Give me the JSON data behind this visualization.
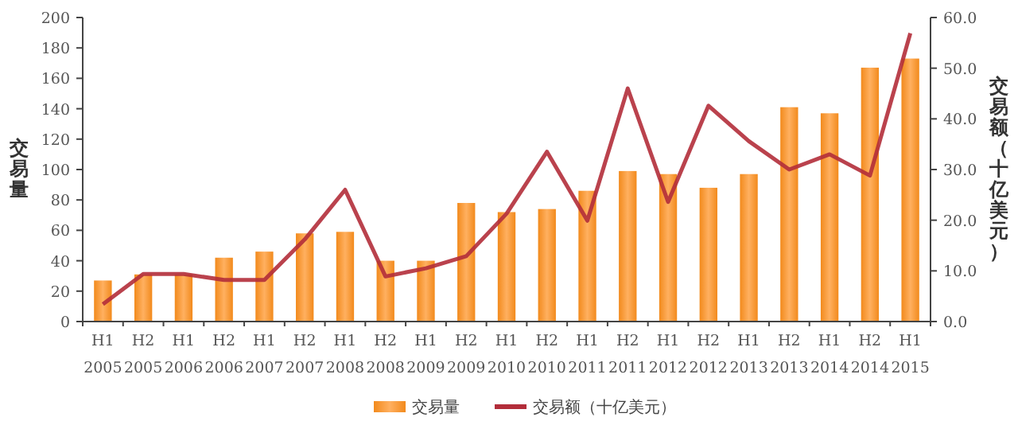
{
  "chart_data": {
    "type": "bar",
    "categories": [
      "H1\n2005",
      "H2\n2005",
      "H1\n2006",
      "H2\n2006",
      "H1\n2007",
      "H2\n2007",
      "H1\n2008",
      "H2\n2008",
      "H1\n2009",
      "H2\n2009",
      "H1\n2010",
      "H2\n2010",
      "H1\n2011",
      "H2\n2011",
      "H1\n2012",
      "H2\n2012",
      "H1\n2013",
      "H2\n2013",
      "H1\n2014",
      "H2\n2014",
      "H1\n2015"
    ],
    "ylabel": "交易量",
    "y2label": "交易额（十亿美元）",
    "ylim": [
      0,
      200
    ],
    "yticks": [
      0,
      20,
      40,
      60,
      80,
      100,
      120,
      140,
      160,
      180,
      200
    ],
    "y2lim": [
      0,
      60
    ],
    "y2ticks": [
      {
        "value": 0,
        "label": "0.0"
      },
      {
        "value": 10,
        "label": "10.0"
      },
      {
        "value": 20,
        "label": "20.0"
      },
      {
        "value": 30,
        "label": "30.0"
      },
      {
        "value": 40,
        "label": "40.0"
      },
      {
        "value": 50,
        "label": "50.0"
      },
      {
        "value": 60,
        "label": "60.0"
      }
    ],
    "series": [
      {
        "name": "交易量",
        "color": "#f28a1c",
        "values": [
          27,
          31,
          31,
          42,
          46,
          58,
          59,
          40,
          40,
          78,
          72,
          74,
          86,
          99,
          97,
          88,
          97,
          141,
          137,
          167,
          173
        ]
      },
      {
        "name": "交易额（十亿美元）",
        "type": "line",
        "axis": "y2",
        "color": "#b22d3a",
        "values": [
          3.4,
          9.4,
          9.4,
          8.2,
          8.2,
          16.2,
          26,
          8.9,
          10.5,
          12.9,
          21.3,
          33.5,
          19.9,
          46,
          23.6,
          42.6,
          35.6,
          30,
          33,
          28.8,
          56.9
        ]
      }
    ],
    "legend": "bottom",
    "grid": false
  }
}
